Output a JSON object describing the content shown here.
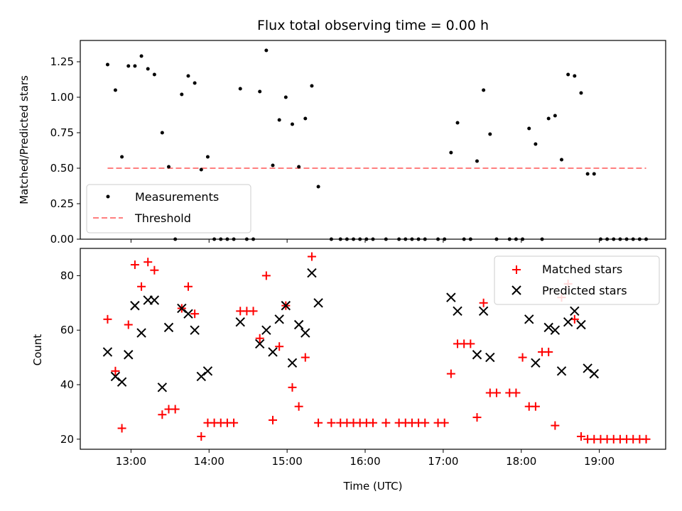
{
  "chart_data": [
    {
      "type": "scatter",
      "title": "Flux total observing time = 0.00 h",
      "xlabel": "",
      "ylabel": "Matched/Predicted stars",
      "xlim": [
        "12:21",
        "19:51"
      ],
      "ylim": [
        0,
        1.4
      ],
      "yticks": [
        0.0,
        0.25,
        0.5,
        0.75,
        1.0,
        1.25
      ],
      "yticklabels": [
        "0.00",
        "0.25",
        "0.50",
        "0.75",
        "1.00",
        "1.25"
      ],
      "xticks": [
        "13:00",
        "14:00",
        "15:00",
        "16:00",
        "17:00",
        "18:00",
        "19:00"
      ],
      "legend_position": "lower-left",
      "series": [
        {
          "name": "Measurements",
          "marker": "dot",
          "color": "#000000",
          "points": [
            [
              "12:42",
              1.23
            ],
            [
              "12:48",
              1.05
            ],
            [
              "12:53",
              0.58
            ],
            [
              "12:58",
              1.22
            ],
            [
              "13:03",
              1.22
            ],
            [
              "13:08",
              1.29
            ],
            [
              "13:13",
              1.2
            ],
            [
              "13:18",
              1.16
            ],
            [
              "13:24",
              0.75
            ],
            [
              "13:29",
              0.51
            ],
            [
              "13:34",
              0.0
            ],
            [
              "13:39",
              1.02
            ],
            [
              "13:44",
              1.15
            ],
            [
              "13:49",
              1.1
            ],
            [
              "13:54",
              0.49
            ],
            [
              "13:59",
              0.58
            ],
            [
              "14:04",
              0.0
            ],
            [
              "14:09",
              0.0
            ],
            [
              "14:14",
              0.0
            ],
            [
              "14:19",
              0.0
            ],
            [
              "14:24",
              1.06
            ],
            [
              "14:29",
              0.0
            ],
            [
              "14:34",
              0.0
            ],
            [
              "14:39",
              1.04
            ],
            [
              "14:44",
              1.33
            ],
            [
              "14:49",
              0.52
            ],
            [
              "14:54",
              0.84
            ],
            [
              "14:59",
              1.0
            ],
            [
              "15:04",
              0.81
            ],
            [
              "15:09",
              0.51
            ],
            [
              "15:14",
              0.85
            ],
            [
              "15:19",
              1.08
            ],
            [
              "15:24",
              0.37
            ],
            [
              "15:34",
              0.0
            ],
            [
              "15:41",
              0.0
            ],
            [
              "15:46",
              0.0
            ],
            [
              "15:51",
              0.0
            ],
            [
              "15:56",
              0.0
            ],
            [
              "16:01",
              0.0
            ],
            [
              "16:06",
              0.0
            ],
            [
              "16:16",
              0.0
            ],
            [
              "16:26",
              0.0
            ],
            [
              "16:31",
              0.0
            ],
            [
              "16:36",
              0.0
            ],
            [
              "16:41",
              0.0
            ],
            [
              "16:46",
              0.0
            ],
            [
              "16:56",
              0.0
            ],
            [
              "17:01",
              0.0
            ],
            [
              "17:06",
              0.61
            ],
            [
              "17:11",
              0.82
            ],
            [
              "17:16",
              0.0
            ],
            [
              "17:21",
              0.0
            ],
            [
              "17:26",
              0.55
            ],
            [
              "17:31",
              1.05
            ],
            [
              "17:36",
              0.74
            ],
            [
              "17:41",
              0.0
            ],
            [
              "17:51",
              0.0
            ],
            [
              "17:56",
              0.0
            ],
            [
              "18:01",
              0.0
            ],
            [
              "18:06",
              0.78
            ],
            [
              "18:11",
              0.67
            ],
            [
              "18:16",
              0.0
            ],
            [
              "18:21",
              0.85
            ],
            [
              "18:26",
              0.87
            ],
            [
              "18:31",
              0.56
            ],
            [
              "18:36",
              1.16
            ],
            [
              "18:41",
              1.15
            ],
            [
              "18:46",
              1.03
            ],
            [
              "18:51",
              0.46
            ],
            [
              "18:56",
              0.46
            ],
            [
              "19:01",
              0.0
            ],
            [
              "19:06",
              0.0
            ],
            [
              "19:11",
              0.0
            ],
            [
              "19:16",
              0.0
            ],
            [
              "19:21",
              0.0
            ],
            [
              "19:26",
              0.0
            ],
            [
              "19:31",
              0.0
            ],
            [
              "19:36",
              0.0
            ]
          ]
        },
        {
          "name": "Threshold",
          "marker": "dashed-line",
          "color": "#ff7f7f",
          "points": [
            [
              "12:42",
              0.5
            ],
            [
              "19:36",
              0.5
            ]
          ]
        }
      ]
    },
    {
      "type": "scatter",
      "title": "",
      "xlabel": "Time (UTC)",
      "ylabel": "Count",
      "xlim": [
        "12:21",
        "19:51"
      ],
      "ylim": [
        16.3,
        90
      ],
      "yticks": [
        20,
        40,
        60,
        80
      ],
      "yticklabels": [
        "20",
        "40",
        "60",
        "80"
      ],
      "xticks": [
        "13:00",
        "14:00",
        "15:00",
        "16:00",
        "17:00",
        "18:00",
        "19:00"
      ],
      "legend_position": "top-right",
      "series": [
        {
          "name": "Matched stars",
          "marker": "plus",
          "color": "#ff0000",
          "points": [
            [
              "12:42",
              64
            ],
            [
              "12:48",
              45
            ],
            [
              "12:53",
              24
            ],
            [
              "12:58",
              62
            ],
            [
              "13:03",
              84
            ],
            [
              "13:08",
              76
            ],
            [
              "13:13",
              85
            ],
            [
              "13:18",
              82
            ],
            [
              "13:24",
              29
            ],
            [
              "13:29",
              31
            ],
            [
              "13:34",
              31
            ],
            [
              "13:39",
              68
            ],
            [
              "13:44",
              76
            ],
            [
              "13:49",
              66
            ],
            [
              "13:54",
              21
            ],
            [
              "13:59",
              26
            ],
            [
              "14:04",
              26
            ],
            [
              "14:09",
              26
            ],
            [
              "14:14",
              26
            ],
            [
              "14:19",
              26
            ],
            [
              "14:24",
              67
            ],
            [
              "14:29",
              67
            ],
            [
              "14:34",
              67
            ],
            [
              "14:39",
              57
            ],
            [
              "14:44",
              80
            ],
            [
              "14:49",
              27
            ],
            [
              "14:54",
              54
            ],
            [
              "14:59",
              69
            ],
            [
              "15:04",
              39
            ],
            [
              "15:09",
              32
            ],
            [
              "15:14",
              50
            ],
            [
              "15:19",
              87
            ],
            [
              "15:24",
              26
            ],
            [
              "15:34",
              26
            ],
            [
              "15:41",
              26
            ],
            [
              "15:46",
              26
            ],
            [
              "15:51",
              26
            ],
            [
              "15:56",
              26
            ],
            [
              "16:01",
              26
            ],
            [
              "16:06",
              26
            ],
            [
              "16:16",
              26
            ],
            [
              "16:26",
              26
            ],
            [
              "16:31",
              26
            ],
            [
              "16:36",
              26
            ],
            [
              "16:41",
              26
            ],
            [
              "16:46",
              26
            ],
            [
              "16:56",
              26
            ],
            [
              "17:01",
              26
            ],
            [
              "17:06",
              44
            ],
            [
              "17:11",
              55
            ],
            [
              "17:16",
              55
            ],
            [
              "17:21",
              55
            ],
            [
              "17:26",
              28
            ],
            [
              "17:31",
              70
            ],
            [
              "17:36",
              37
            ],
            [
              "17:41",
              37
            ],
            [
              "17:51",
              37
            ],
            [
              "17:56",
              37
            ],
            [
              "18:01",
              50
            ],
            [
              "18:06",
              32
            ],
            [
              "18:11",
              32
            ],
            [
              "18:16",
              52
            ],
            [
              "18:21",
              52
            ],
            [
              "18:26",
              25
            ],
            [
              "18:31",
              72
            ],
            [
              "18:36",
              77
            ],
            [
              "18:41",
              64
            ],
            [
              "18:46",
              21
            ],
            [
              "18:51",
              20
            ],
            [
              "18:56",
              20
            ],
            [
              "19:01",
              20
            ],
            [
              "19:06",
              20
            ],
            [
              "19:11",
              20
            ],
            [
              "19:16",
              20
            ],
            [
              "19:21",
              20
            ],
            [
              "19:26",
              20
            ],
            [
              "19:31",
              20
            ],
            [
              "19:36",
              20
            ]
          ]
        },
        {
          "name": "Predicted stars",
          "marker": "x",
          "color": "#000000",
          "points": [
            [
              "12:42",
              52
            ],
            [
              "12:48",
              43
            ],
            [
              "12:53",
              41
            ],
            [
              "12:58",
              51
            ],
            [
              "13:03",
              69
            ],
            [
              "13:08",
              59
            ],
            [
              "13:13",
              71
            ],
            [
              "13:18",
              71
            ],
            [
              "13:24",
              39
            ],
            [
              "13:29",
              61
            ],
            [
              "13:39",
              68
            ],
            [
              "13:44",
              66
            ],
            [
              "13:49",
              60
            ],
            [
              "13:54",
              43
            ],
            [
              "13:59",
              45
            ],
            [
              "14:24",
              63
            ],
            [
              "14:39",
              55
            ],
            [
              "14:44",
              60
            ],
            [
              "14:49",
              52
            ],
            [
              "14:54",
              64
            ],
            [
              "14:59",
              69
            ],
            [
              "15:04",
              48
            ],
            [
              "15:09",
              62
            ],
            [
              "15:14",
              59
            ],
            [
              "15:19",
              81
            ],
            [
              "15:24",
              70
            ],
            [
              "17:06",
              72
            ],
            [
              "17:11",
              67
            ],
            [
              "17:26",
              51
            ],
            [
              "17:31",
              67
            ],
            [
              "17:36",
              50
            ],
            [
              "18:06",
              64
            ],
            [
              "18:11",
              48
            ],
            [
              "18:21",
              61
            ],
            [
              "18:26",
              60
            ],
            [
              "18:31",
              45
            ],
            [
              "18:36",
              63
            ],
            [
              "18:41",
              67
            ],
            [
              "18:46",
              62
            ],
            [
              "18:51",
              46
            ],
            [
              "18:56",
              44
            ]
          ]
        }
      ]
    }
  ]
}
